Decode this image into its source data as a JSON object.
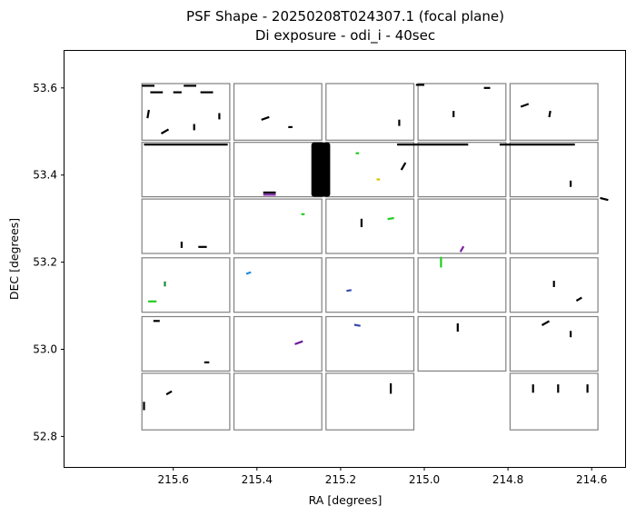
{
  "chart_data": {
    "type": "scatter",
    "title": [
      "PSF Shape - 20250208T024307.1 (focal plane)",
      "Di exposure - odi_i - 40sec"
    ],
    "xlabel": "RA [degrees]",
    "ylabel": "DEC [degrees]",
    "xlim": [
      215.86,
      214.52
    ],
    "ylim": [
      52.73,
      53.685
    ],
    "x_ticks": [
      215.6,
      215.4,
      215.2,
      215.0,
      214.8,
      214.6
    ],
    "x_tick_labels": [
      "215.6",
      "215.4",
      "215.2",
      "215.0",
      "214.8",
      "214.6"
    ],
    "y_ticks": [
      53.6,
      53.4,
      53.2,
      53.0,
      52.8
    ],
    "y_tick_labels": [
      "53.6",
      "53.4",
      "53.2",
      "53.0",
      "52.8"
    ],
    "grid": false,
    "ota_grid": {
      "columns": [
        [
          215.675,
          215.465
        ],
        [
          215.455,
          215.245
        ],
        [
          215.235,
          215.025
        ],
        [
          215.015,
          214.805
        ],
        [
          214.795,
          214.585
        ]
      ],
      "rows": [
        [
          53.48,
          53.61
        ],
        [
          53.35,
          53.475
        ],
        [
          53.22,
          53.345
        ],
        [
          53.085,
          53.21
        ],
        [
          52.95,
          53.075
        ],
        [
          52.815,
          52.945
        ]
      ],
      "missing": [
        [
          5,
          3
        ]
      ]
    },
    "psf_whiskers": [
      {
        "ra": 215.66,
        "dec": 53.605,
        "angle": 0,
        "len": 0.03,
        "color": "#000000"
      },
      {
        "ra": 215.56,
        "dec": 53.605,
        "angle": 0,
        "len": 0.03,
        "color": "#000000"
      },
      {
        "ra": 215.64,
        "dec": 53.59,
        "angle": 0,
        "len": 0.03,
        "color": "#000000"
      },
      {
        "ra": 215.59,
        "dec": 53.59,
        "angle": 0,
        "len": 0.02,
        "color": "#000000"
      },
      {
        "ra": 215.52,
        "dec": 53.59,
        "angle": 0,
        "len": 0.03,
        "color": "#000000"
      },
      {
        "ra": 215.66,
        "dec": 53.54,
        "angle": 80,
        "len": 0.02,
        "color": "#000000"
      },
      {
        "ra": 215.62,
        "dec": 53.5,
        "angle": 30,
        "len": 0.02,
        "color": "#000000"
      },
      {
        "ra": 215.55,
        "dec": 53.51,
        "angle": 90,
        "len": 0.015,
        "color": "#000000"
      },
      {
        "ra": 215.49,
        "dec": 53.535,
        "angle": 90,
        "len": 0.015,
        "color": "#000000"
      },
      {
        "ra": 215.38,
        "dec": 53.53,
        "angle": 20,
        "len": 0.02,
        "color": "#000000"
      },
      {
        "ra": 215.32,
        "dec": 53.51,
        "angle": 0,
        "len": 0.01,
        "color": "#000000"
      },
      {
        "ra": 215.06,
        "dec": 53.52,
        "angle": 90,
        "len": 0.015,
        "color": "#000000"
      },
      {
        "ra": 215.01,
        "dec": 53.607,
        "angle": 0,
        "len": 0.02,
        "color": "#000000"
      },
      {
        "ra": 214.93,
        "dec": 53.54,
        "angle": 90,
        "len": 0.015,
        "color": "#000000"
      },
      {
        "ra": 214.85,
        "dec": 53.6,
        "angle": 0,
        "len": 0.015,
        "color": "#000000"
      },
      {
        "ra": 214.76,
        "dec": 53.56,
        "angle": 20,
        "len": 0.02,
        "color": "#000000"
      },
      {
        "ra": 214.7,
        "dec": 53.54,
        "angle": 80,
        "len": 0.015,
        "color": "#000000"
      },
      {
        "ra": 215.57,
        "dec": 53.47,
        "angle": 0,
        "len": 0.2,
        "color": "#000000"
      },
      {
        "ra": 214.98,
        "dec": 53.47,
        "angle": 0,
        "len": 0.17,
        "color": "#000000"
      },
      {
        "ra": 214.73,
        "dec": 53.47,
        "angle": 0,
        "len": 0.18,
        "color": "#000000"
      },
      {
        "ra": 215.37,
        "dec": 53.36,
        "angle": 0,
        "len": 0.03,
        "color": "#000000"
      },
      {
        "ra": 215.37,
        "dec": 53.355,
        "angle": 0,
        "len": 0.03,
        "color": "#7b1fa2"
      },
      {
        "ra": 215.05,
        "dec": 53.42,
        "angle": 60,
        "len": 0.02,
        "color": "#000000"
      },
      {
        "ra": 215.16,
        "dec": 53.45,
        "angle": 0,
        "len": 0.008,
        "color": "#22cc22"
      },
      {
        "ra": 215.11,
        "dec": 53.39,
        "angle": 0,
        "len": 0.008,
        "color": "#d4c400"
      },
      {
        "ra": 214.65,
        "dec": 53.38,
        "angle": 90,
        "len": 0.015,
        "color": "#000000"
      },
      {
        "ra": 214.57,
        "dec": 53.345,
        "angle": -15,
        "len": 0.02,
        "color": "#000000"
      },
      {
        "ra": 215.58,
        "dec": 53.24,
        "angle": 90,
        "len": 0.015,
        "color": "#000000"
      },
      {
        "ra": 215.53,
        "dec": 53.235,
        "angle": 0,
        "len": 0.02,
        "color": "#000000"
      },
      {
        "ra": 215.29,
        "dec": 53.31,
        "angle": 0,
        "len": 0.008,
        "color": "#22cc22"
      },
      {
        "ra": 215.15,
        "dec": 53.29,
        "angle": 90,
        "len": 0.02,
        "color": "#000000"
      },
      {
        "ra": 215.08,
        "dec": 53.3,
        "angle": 10,
        "len": 0.015,
        "color": "#22cc22"
      },
      {
        "ra": 214.91,
        "dec": 53.23,
        "angle": 60,
        "len": 0.015,
        "color": "#7b1fa2"
      },
      {
        "ra": 215.65,
        "dec": 53.11,
        "angle": 0,
        "len": 0.02,
        "color": "#22cc22"
      },
      {
        "ra": 215.62,
        "dec": 53.15,
        "angle": 90,
        "len": 0.012,
        "color": "#1a8a3a"
      },
      {
        "ra": 215.42,
        "dec": 53.175,
        "angle": 20,
        "len": 0.012,
        "color": "#1e88e5"
      },
      {
        "ra": 214.96,
        "dec": 53.2,
        "angle": 90,
        "len": 0.025,
        "color": "#22cc22"
      },
      {
        "ra": 215.18,
        "dec": 53.135,
        "angle": 10,
        "len": 0.012,
        "color": "#3949ab"
      },
      {
        "ra": 214.69,
        "dec": 53.15,
        "angle": 90,
        "len": 0.015,
        "color": "#000000"
      },
      {
        "ra": 214.63,
        "dec": 53.115,
        "angle": 30,
        "len": 0.015,
        "color": "#000000"
      },
      {
        "ra": 215.64,
        "dec": 53.065,
        "angle": 0,
        "len": 0.015,
        "color": "#000000"
      },
      {
        "ra": 215.52,
        "dec": 52.97,
        "angle": 0,
        "len": 0.012,
        "color": "#000000"
      },
      {
        "ra": 215.3,
        "dec": 53.015,
        "angle": 20,
        "len": 0.02,
        "color": "#6a1b9a"
      },
      {
        "ra": 215.16,
        "dec": 53.055,
        "angle": -10,
        "len": 0.015,
        "color": "#3949ab"
      },
      {
        "ra": 214.92,
        "dec": 53.05,
        "angle": 90,
        "len": 0.02,
        "color": "#000000"
      },
      {
        "ra": 214.71,
        "dec": 53.06,
        "angle": 30,
        "len": 0.02,
        "color": "#000000"
      },
      {
        "ra": 214.65,
        "dec": 53.035,
        "angle": 90,
        "len": 0.015,
        "color": "#000000"
      },
      {
        "ra": 215.67,
        "dec": 52.87,
        "angle": 90,
        "len": 0.02,
        "color": "#000000"
      },
      {
        "ra": 215.61,
        "dec": 52.9,
        "angle": 30,
        "len": 0.015,
        "color": "#000000"
      },
      {
        "ra": 215.08,
        "dec": 52.91,
        "angle": 90,
        "len": 0.025,
        "color": "#000000"
      },
      {
        "ra": 214.74,
        "dec": 52.91,
        "angle": 90,
        "len": 0.02,
        "color": "#000000"
      },
      {
        "ra": 214.68,
        "dec": 52.91,
        "angle": 90,
        "len": 0.02,
        "color": "#000000"
      },
      {
        "ra": 214.61,
        "dec": 52.91,
        "angle": 90,
        "len": 0.02,
        "color": "#000000"
      }
    ],
    "dense_blocks": [
      {
        "ra": [
          215.27,
          215.225
        ],
        "dec": [
          53.35,
          53.475
        ],
        "color": "#000000"
      }
    ]
  }
}
